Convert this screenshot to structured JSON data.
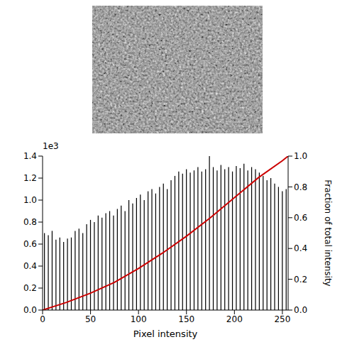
{
  "chart_data": {
    "type": "histogram",
    "xlabel": "Pixel intensity",
    "y2label": "Fraction of total intensity",
    "y_offset_text": "1e3",
    "bins": [
      0,
      4,
      8,
      12,
      16,
      20,
      24,
      28,
      32,
      36,
      40,
      44,
      48,
      52,
      56,
      60,
      64,
      68,
      72,
      76,
      80,
      84,
      88,
      92,
      96,
      100,
      104,
      108,
      112,
      116,
      120,
      124,
      128,
      132,
      136,
      140,
      144,
      148,
      152,
      156,
      160,
      164,
      168,
      172,
      176,
      180,
      184,
      188,
      192,
      196,
      200,
      204,
      208,
      212,
      216,
      220,
      224,
      228,
      232,
      236,
      240,
      244,
      248,
      252,
      256
    ],
    "values": [
      0.7,
      0.68,
      0.72,
      0.64,
      0.66,
      0.62,
      0.65,
      0.66,
      0.72,
      0.74,
      0.7,
      0.78,
      0.82,
      0.8,
      0.86,
      0.84,
      0.88,
      0.9,
      0.86,
      0.92,
      0.95,
      0.9,
      1.0,
      0.97,
      1.02,
      1.05,
      1.0,
      1.08,
      1.1,
      1.06,
      1.12,
      1.15,
      1.1,
      1.18,
      1.22,
      1.26,
      1.24,
      1.28,
      1.25,
      1.27,
      1.3,
      1.26,
      1.28,
      1.4,
      1.3,
      1.27,
      1.32,
      1.28,
      1.3,
      1.26,
      1.31,
      1.29,
      1.33,
      1.27,
      1.3,
      1.28,
      1.25,
      1.22,
      1.18,
      1.2,
      1.15,
      1.12,
      1.08,
      1.1
    ],
    "color": "#000000",
    "cumulative": {
      "type": "line",
      "axis": "y2",
      "color": "#cc0000",
      "x": [
        0,
        25,
        50,
        75,
        100,
        125,
        150,
        175,
        200,
        225,
        250,
        256
      ],
      "values": [
        0,
        0.05,
        0.11,
        0.18,
        0.27,
        0.37,
        0.48,
        0.6,
        0.73,
        0.86,
        0.97,
        1.0
      ]
    },
    "xlim": [
      0,
      256
    ],
    "xticks": [
      0,
      50,
      100,
      150,
      200,
      250
    ],
    "ylim": [
      0,
      1.4
    ],
    "yticks": [
      {
        "value": 0,
        "label": "0.0"
      },
      {
        "value": 0.2,
        "label": "0.2"
      },
      {
        "value": 0.4,
        "label": "0.4"
      },
      {
        "value": 0.6,
        "label": "0.6"
      },
      {
        "value": 0.8,
        "label": "0.8"
      },
      {
        "value": 1.0,
        "label": "1.0"
      },
      {
        "value": 1.2,
        "label": "1.2"
      },
      {
        "value": 1.4,
        "label": "1.4"
      }
    ],
    "y2lim": [
      0,
      1.0
    ],
    "y2ticks": [
      {
        "value": 0,
        "label": "0.0"
      },
      {
        "value": 0.2,
        "label": "0.2"
      },
      {
        "value": 0.4,
        "label": "0.4"
      },
      {
        "value": 0.6,
        "label": "0.6"
      },
      {
        "value": 0.8,
        "label": "0.8"
      },
      {
        "value": 1.0,
        "label": "1.0"
      }
    ],
    "grid": false
  }
}
